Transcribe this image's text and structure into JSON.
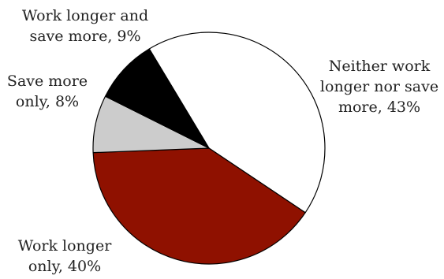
{
  "chart_data": {
    "type": "pie",
    "slices": [
      {
        "key": "neither",
        "values": 43,
        "color": "#ffffff",
        "label_lines": [
          "Neither work",
          "longer nor save",
          "more, 43%"
        ]
      },
      {
        "key": "work-longer",
        "values": 40,
        "color": "#8f1100",
        "label_lines": [
          "Work longer",
          "only, 40%"
        ]
      },
      {
        "key": "save-more",
        "values": 8,
        "color": "#cccccc",
        "label_lines": [
          "Save more",
          "only, 8%"
        ]
      },
      {
        "key": "both",
        "values": 9,
        "color": "#000000",
        "label_lines": [
          "Work longer and",
          "save more, 9%"
        ]
      }
    ],
    "stroke_color": "#000000"
  }
}
